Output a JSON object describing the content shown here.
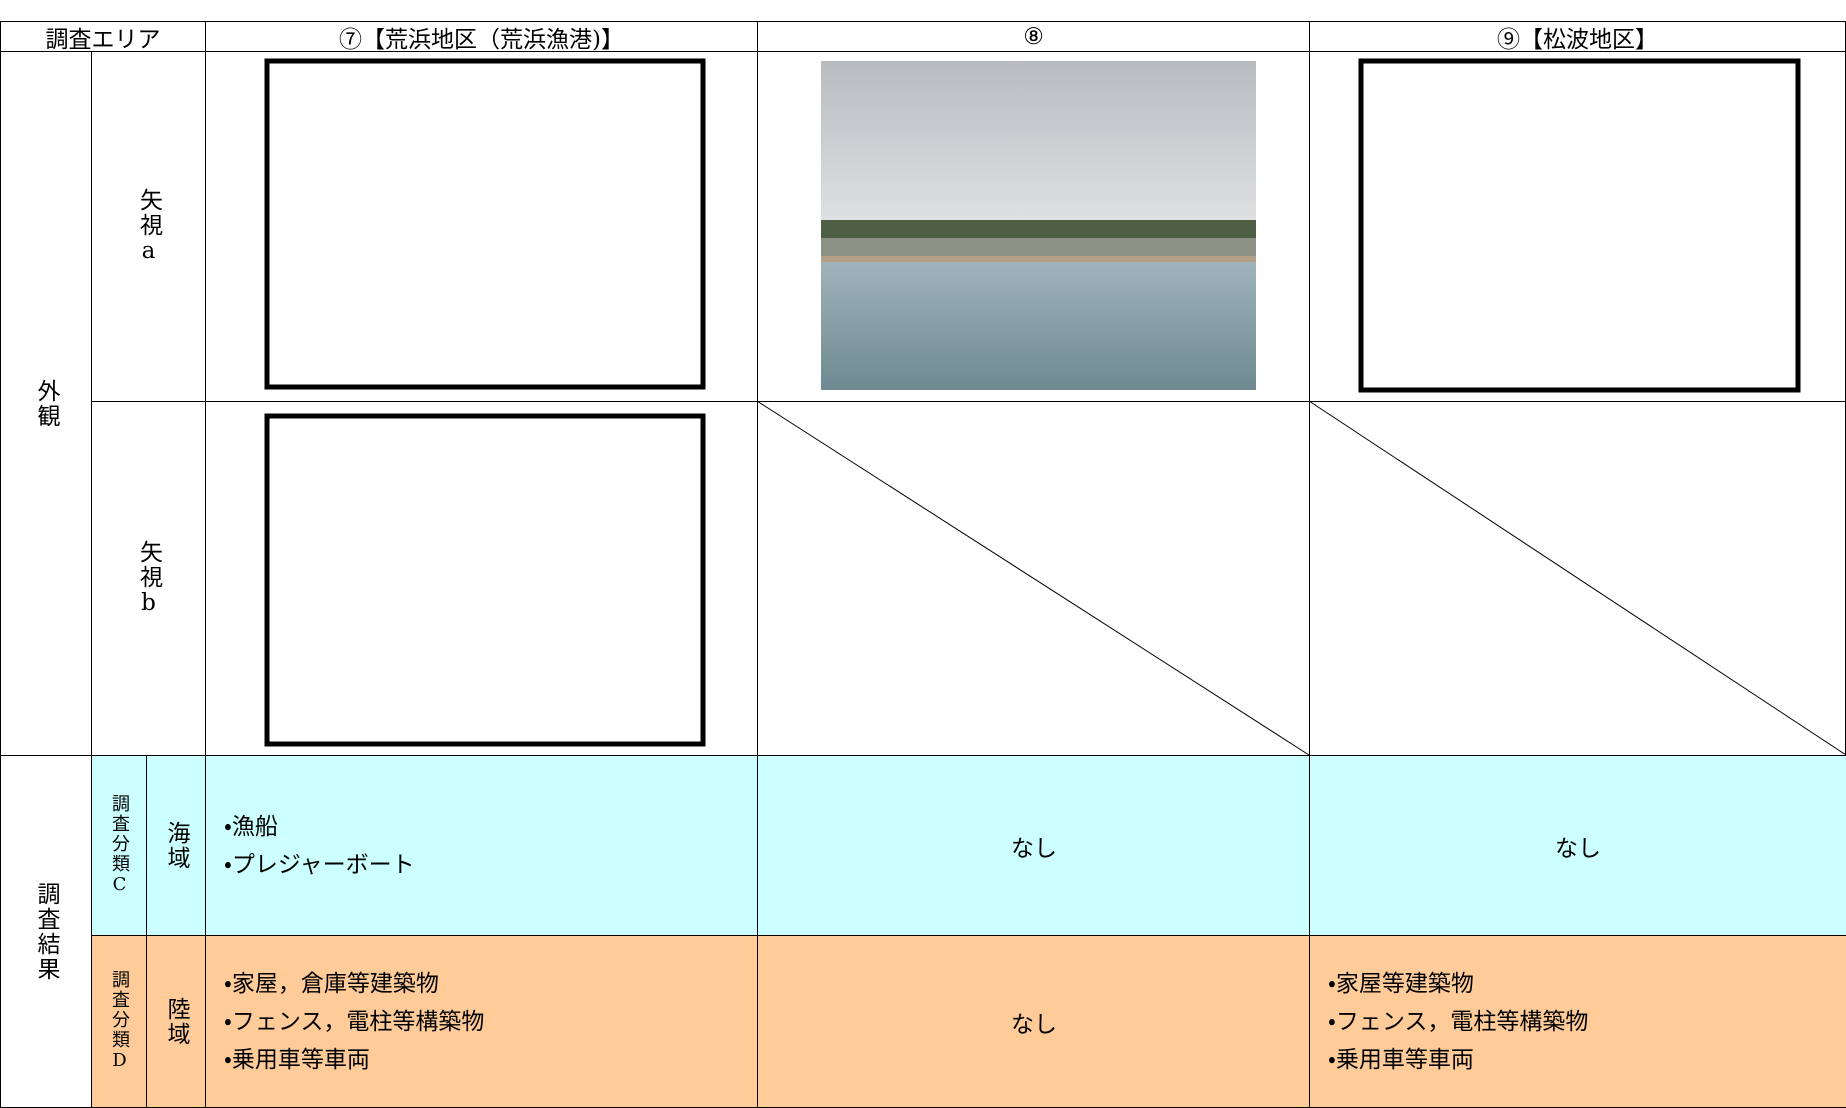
{
  "table": {
    "header": [
      "調査エリア",
      "⑦【荒浜地区（荒浜漁港)】",
      "⑧",
      "⑨【松波地区】"
    ],
    "appearance": {
      "label": "外観",
      "views": [
        "矢視a",
        "矢視b"
      ]
    },
    "results": {
      "label": "調査結果",
      "rows": [
        {
          "category": "調査分類C",
          "area": "海域",
          "cells": [
            [
              "・漁船",
              "・プレジャーボート"
            ],
            [
              "なし"
            ],
            [
              "なし"
            ]
          ]
        },
        {
          "category": "調査分類D",
          "area": "陸域",
          "cells": [
            [
              "・家屋，倉庫等建築物",
              "・フェンス，電柱等構築物",
              "・乗用車等車両"
            ],
            [
              "なし"
            ],
            [
              "・家屋等建築物",
              "・フェンス，電柱等構築物",
              "・乗用車等車両"
            ]
          ]
        }
      ]
    }
  }
}
